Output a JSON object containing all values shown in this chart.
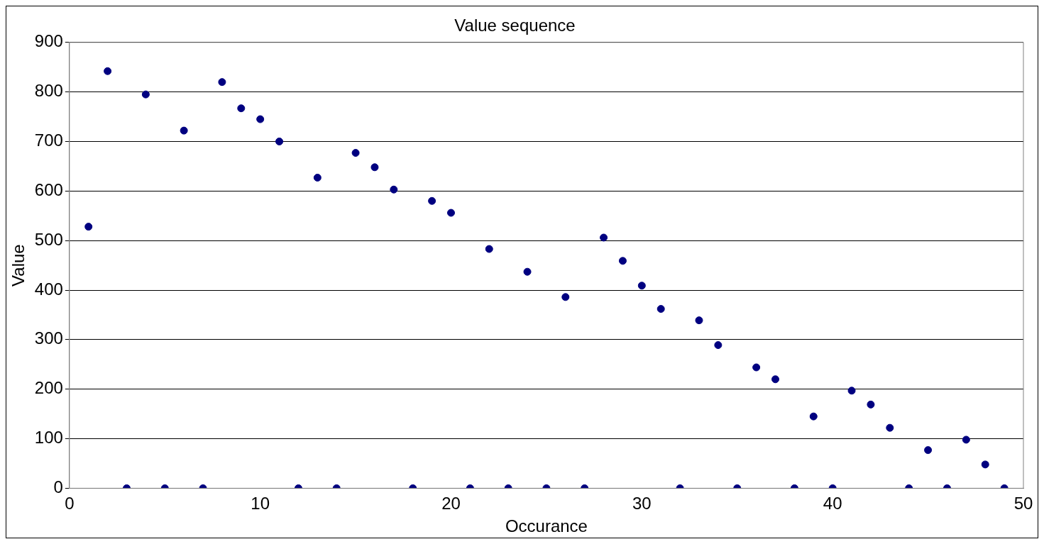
{
  "chart_data": {
    "type": "scatter",
    "title": "Value sequence",
    "xlabel": "Occurance",
    "ylabel": "Value",
    "x": [
      1,
      2,
      3,
      4,
      5,
      6,
      7,
      8,
      9,
      10,
      11,
      12,
      13,
      14,
      15,
      16,
      17,
      18,
      19,
      20,
      21,
      22,
      23,
      24,
      25,
      26,
      27,
      28,
      29,
      30,
      31,
      32,
      33,
      34,
      35,
      36,
      37,
      38,
      39,
      40,
      41,
      42,
      43,
      44,
      45,
      46,
      47,
      48,
      49
    ],
    "values": [
      528,
      842,
      0,
      795,
      0,
      722,
      0,
      820,
      767,
      745,
      700,
      0,
      627,
      0,
      677,
      648,
      603,
      0,
      580,
      556,
      0,
      483,
      0,
      437,
      0,
      386,
      0,
      506,
      459,
      409,
      362,
      0,
      339,
      289,
      0,
      244,
      220,
      0,
      145,
      0,
      197,
      169,
      122,
      0,
      77,
      0,
      98,
      48,
      0
    ],
    "color": "#000080",
    "marker": "circle",
    "xlim": [
      0,
      50
    ],
    "xticks": [
      0,
      10,
      20,
      30,
      40,
      50
    ],
    "ylim": [
      0,
      900
    ],
    "yticks": [
      0,
      100,
      200,
      300,
      400,
      500,
      600,
      700,
      800,
      900
    ],
    "grid": "y",
    "legend": false
  }
}
